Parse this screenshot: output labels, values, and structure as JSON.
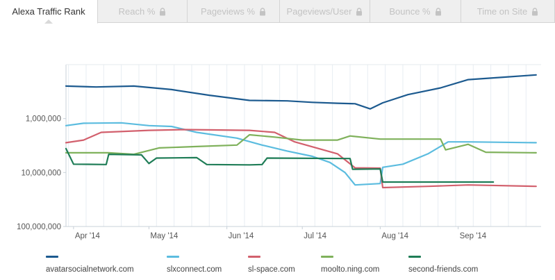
{
  "tabs": [
    {
      "label": "Alexa Traffic Rank",
      "active": true,
      "locked": false
    },
    {
      "label": "Reach %",
      "active": false,
      "locked": true
    },
    {
      "label": "Pageviews %",
      "active": false,
      "locked": true
    },
    {
      "label": "Pageviews/User",
      "active": false,
      "locked": true
    },
    {
      "label": "Bounce %",
      "active": false,
      "locked": true
    },
    {
      "label": "Time on Site",
      "active": false,
      "locked": true
    }
  ],
  "chart_data": {
    "type": "line",
    "title": "",
    "xlabel": "",
    "ylabel": "",
    "y_scale": "log",
    "y_inverted": true,
    "ylim": [
      100000,
      100000000
    ],
    "y_ticks": [
      "1,000,000",
      "10,000,000",
      "100,000,000"
    ],
    "x_ticks": [
      "Apr '14",
      "May '14",
      "Jun '14",
      "Jul '14",
      "Aug '14",
      "Sep '14"
    ],
    "xlim": [
      "2014-03-29",
      "2014-10-04"
    ],
    "grid": "vertical",
    "legend_position": "bottom",
    "series": [
      {
        "name": "avatarsocialnetwork.com",
        "color": "#1c5a8f",
        "points": [
          [
            "2014-03-29",
            250000
          ],
          [
            "2014-04-10",
            260000
          ],
          [
            "2014-04-25",
            250000
          ],
          [
            "2014-05-10",
            290000
          ],
          [
            "2014-05-25",
            370000
          ],
          [
            "2014-06-10",
            460000
          ],
          [
            "2014-06-25",
            470000
          ],
          [
            "2014-07-05",
            500000
          ],
          [
            "2014-07-15",
            520000
          ],
          [
            "2014-07-22",
            530000
          ],
          [
            "2014-07-28",
            660000
          ],
          [
            "2014-08-02",
            510000
          ],
          [
            "2014-08-12",
            360000
          ],
          [
            "2014-08-25",
            270000
          ],
          [
            "2014-09-05",
            190000
          ],
          [
            "2014-09-20",
            170000
          ],
          [
            "2014-10-02",
            155000
          ]
        ]
      },
      {
        "name": "slxconnect.com",
        "color": "#5bbcdf",
        "points": [
          [
            "2014-03-29",
            1350000
          ],
          [
            "2014-04-05",
            1220000
          ],
          [
            "2014-04-20",
            1200000
          ],
          [
            "2014-05-01",
            1350000
          ],
          [
            "2014-05-10",
            1400000
          ],
          [
            "2014-05-20",
            1800000
          ],
          [
            "2014-06-05",
            2300000
          ],
          [
            "2014-06-15",
            3100000
          ],
          [
            "2014-06-25",
            4000000
          ],
          [
            "2014-07-05",
            5000000
          ],
          [
            "2014-07-12",
            6500000
          ],
          [
            "2014-07-18",
            10000000
          ],
          [
            "2014-07-22",
            17000000
          ],
          [
            "2014-08-01",
            16000000
          ],
          [
            "2014-08-02",
            8000000
          ],
          [
            "2014-08-10",
            7000000
          ],
          [
            "2014-08-20",
            4500000
          ],
          [
            "2014-08-28",
            2700000
          ],
          [
            "2014-09-05",
            2700000
          ],
          [
            "2014-10-02",
            2800000
          ]
        ]
      },
      {
        "name": "sl-space.com",
        "color": "#d2606d",
        "points": [
          [
            "2014-03-29",
            2800000
          ],
          [
            "2014-04-05",
            2500000
          ],
          [
            "2014-04-12",
            1800000
          ],
          [
            "2014-05-01",
            1650000
          ],
          [
            "2014-05-15",
            1600000
          ],
          [
            "2014-06-10",
            1650000
          ],
          [
            "2014-06-20",
            1800000
          ],
          [
            "2014-06-28",
            2700000
          ],
          [
            "2014-07-15",
            4500000
          ],
          [
            "2014-07-22",
            8200000
          ],
          [
            "2014-08-01",
            8300000
          ],
          [
            "2014-08-02",
            19000000
          ],
          [
            "2014-08-20",
            18000000
          ],
          [
            "2014-09-05",
            17000000
          ],
          [
            "2014-10-02",
            18000000
          ]
        ]
      },
      {
        "name": "moolto.ning.com",
        "color": "#7fb15b",
        "points": [
          [
            "2014-03-29",
            4300000
          ],
          [
            "2014-04-15",
            4300000
          ],
          [
            "2014-04-25",
            4600000
          ],
          [
            "2014-05-05",
            3500000
          ],
          [
            "2014-05-20",
            3300000
          ],
          [
            "2014-06-05",
            3100000
          ],
          [
            "2014-06-10",
            2000000
          ],
          [
            "2014-06-20",
            2200000
          ],
          [
            "2014-07-01",
            2500000
          ],
          [
            "2014-07-15",
            2500000
          ],
          [
            "2014-07-20",
            2100000
          ],
          [
            "2014-08-01",
            2400000
          ],
          [
            "2014-08-25",
            2400000
          ],
          [
            "2014-08-27",
            3800000
          ],
          [
            "2014-09-05",
            3000000
          ],
          [
            "2014-09-12",
            4200000
          ],
          [
            "2014-10-02",
            4300000
          ]
        ]
      },
      {
        "name": "second-friends.com",
        "color": "#1f7d57",
        "points": [
          [
            "2014-03-29",
            3600000
          ],
          [
            "2014-04-01",
            7000000
          ],
          [
            "2014-04-14",
            7100000
          ],
          [
            "2014-04-15",
            4600000
          ],
          [
            "2014-04-28",
            4700000
          ],
          [
            "2014-05-01",
            6800000
          ],
          [
            "2014-05-04",
            5400000
          ],
          [
            "2014-05-20",
            5300000
          ],
          [
            "2014-05-24",
            7100000
          ],
          [
            "2014-06-10",
            7200000
          ],
          [
            "2014-06-15",
            7100000
          ],
          [
            "2014-06-17",
            5400000
          ],
          [
            "2014-07-20",
            5500000
          ],
          [
            "2014-07-21",
            8700000
          ],
          [
            "2014-08-01",
            8600000
          ],
          [
            "2014-08-02",
            15000000
          ],
          [
            "2014-09-15",
            15000000
          ]
        ]
      }
    ]
  }
}
